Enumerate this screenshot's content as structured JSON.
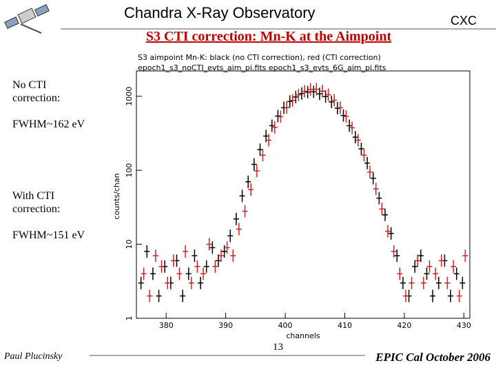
{
  "header": {
    "title": "Chandra X-Ray Observatory",
    "logo": "CXC"
  },
  "slide_title": "S3 CTI correction: Mn-K at the Aimpoint",
  "notes": [
    "No CTI correction:",
    "FWHM~162 eV",
    "With CTI correction:",
    "FWHM~151 eV"
  ],
  "footer": {
    "author": "Paul Plucinsky",
    "page": "13",
    "event": "EPIC Cal October 2006"
  },
  "chart_data": {
    "type": "scatter",
    "title": "S3 aimpoint Mn-K: black (no CTI correction), red (CTI correction)",
    "subtitle": "epoch1_s3_noCTI_evts_aim_pi.fits epoch1_s3_evts_6G_aim_pi.fits",
    "x_label": "channels",
    "y_label": "counts/chan",
    "x": [
      376,
      377,
      378,
      379,
      380,
      381,
      382,
      383,
      384,
      385,
      386,
      387,
      388,
      389,
      390,
      391,
      392,
      393,
      394,
      395,
      396,
      397,
      398,
      399,
      400,
      401,
      402,
      403,
      404,
      405,
      406,
      407,
      408,
      409,
      410,
      411,
      412,
      413,
      414,
      415,
      416,
      417,
      418,
      419,
      420,
      421,
      422,
      423,
      424,
      425,
      426,
      427,
      428,
      429,
      430
    ],
    "series": [
      {
        "color": "#000000",
        "values": [
          3,
          8,
          4,
          2,
          5,
          3,
          6,
          2,
          4,
          7,
          3,
          5,
          9,
          6,
          8,
          13,
          22,
          45,
          70,
          120,
          190,
          290,
          400,
          540,
          700,
          850,
          980,
          1090,
          1140,
          1150,
          1080,
          990,
          840,
          690,
          550,
          400,
          280,
          195,
          125,
          78,
          42,
          25,
          14,
          7,
          3,
          2,
          5,
          7,
          4,
          2,
          3,
          6,
          2,
          4,
          3
        ]
      },
      {
        "color": "#d02020",
        "values": [
          4,
          2,
          7,
          5,
          3,
          6,
          4,
          8,
          3,
          5,
          4,
          10,
          5,
          7,
          9,
          7,
          16,
          28,
          55,
          98,
          160,
          255,
          380,
          530,
          705,
          880,
          1045,
          1170,
          1240,
          1245,
          1175,
          1050,
          885,
          700,
          535,
          375,
          255,
          160,
          95,
          56,
          30,
          15,
          8,
          4,
          2,
          3,
          6,
          3,
          5,
          4,
          6,
          3,
          5,
          2,
          7
        ]
      }
    ],
    "xlim": [
      375,
      431
    ],
    "xticks": [
      380,
      390,
      400,
      410,
      420,
      430
    ],
    "ylim": [
      1,
      2200
    ],
    "yticks": [
      1,
      10,
      100,
      1000
    ],
    "ylog": true
  }
}
